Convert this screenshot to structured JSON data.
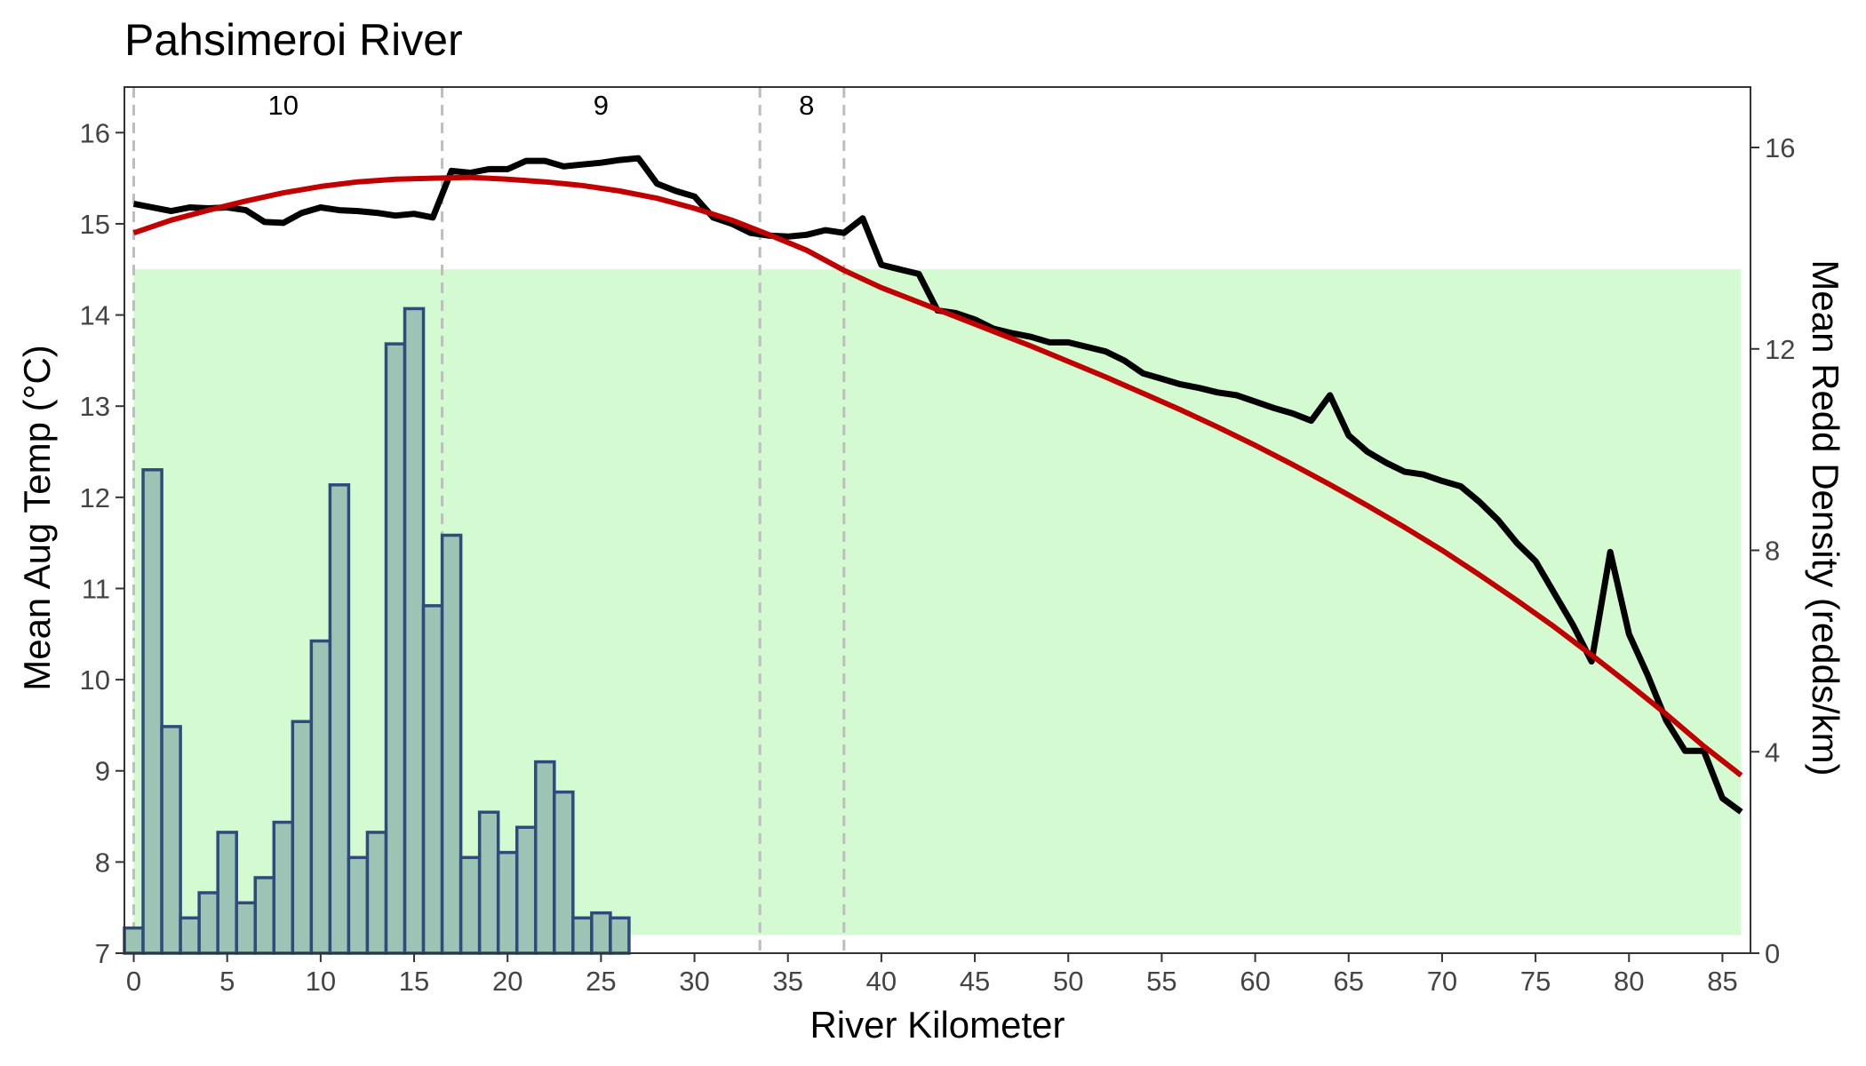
{
  "chart_data": {
    "type": "bar+line",
    "title": "Pahsimeroi River",
    "xlabel": "River Kilometer",
    "ylabel": "Mean Aug Temp (°C)",
    "y2label": "Mean Redd Density (redds/km)",
    "xlim": [
      -0.5,
      86.5
    ],
    "ylim": [
      7,
      16.5
    ],
    "y2lim": [
      0,
      17.2
    ],
    "x_ticks": [
      0,
      5,
      10,
      15,
      20,
      25,
      30,
      35,
      40,
      45,
      50,
      55,
      60,
      65,
      70,
      75,
      80,
      85
    ],
    "y_ticks": [
      7,
      8,
      9,
      10,
      11,
      12,
      13,
      14,
      15,
      16
    ],
    "y2_ticks": [
      0,
      4,
      8,
      12,
      16
    ],
    "colors": {
      "bar_fill": "#9dc3b5",
      "bar_outline": "#2e4b7b",
      "temp_line": "#000000",
      "fit_line": "#c00000",
      "band": "#d3fad0",
      "band_lower": "#c8cce8",
      "dashed": "#bdbdbd"
    },
    "band": {
      "x": [
        0,
        86
      ],
      "y": [
        7.2,
        14.5
      ]
    },
    "band_lower": {
      "x": [
        0,
        26.5
      ],
      "y": [
        7,
        7.2
      ]
    },
    "vlines": [
      0,
      16.5,
      33.5,
      38
    ],
    "segment_labels": [
      {
        "x": 8,
        "text": "10"
      },
      {
        "x": 25,
        "text": "9"
      },
      {
        "x": 36,
        "text": "8"
      }
    ],
    "redd_density": {
      "x": [
        0,
        1,
        2,
        3,
        4,
        5,
        6,
        7,
        8,
        9,
        10,
        11,
        12,
        13,
        14,
        15,
        16,
        17,
        18,
        19,
        20,
        21,
        22,
        23,
        24,
        25,
        26
      ],
      "values": [
        0.5,
        9.6,
        4.5,
        0.7,
        1.2,
        2.4,
        1.0,
        1.5,
        2.6,
        4.6,
        6.2,
        9.3,
        1.9,
        2.4,
        12.1,
        12.8,
        6.9,
        8.3,
        1.9,
        2.8,
        2.0,
        2.5,
        3.8,
        3.2,
        0.7,
        0.8,
        0.7
      ]
    },
    "temperature": {
      "x": [
        0,
        1,
        2,
        3,
        4,
        5,
        6,
        7,
        8,
        9,
        10,
        11,
        12,
        13,
        14,
        15,
        16,
        17,
        18,
        19,
        20,
        21,
        22,
        23,
        24,
        25,
        26,
        27,
        28,
        29,
        30,
        31,
        32,
        33,
        34,
        35,
        36,
        37,
        38,
        39,
        40,
        41,
        42,
        43,
        44,
        45,
        46,
        47,
        48,
        49,
        50,
        51,
        52,
        53,
        54,
        55,
        56,
        57,
        58,
        59,
        60,
        61,
        62,
        63,
        64,
        65,
        66,
        67,
        68,
        69,
        70,
        71,
        72,
        73,
        74,
        75,
        76,
        77,
        78,
        79,
        80,
        81,
        82,
        83,
        84,
        85,
        86
      ],
      "values": [
        15.22,
        15.18,
        15.14,
        15.18,
        15.17,
        15.18,
        15.15,
        15.02,
        15.01,
        15.12,
        15.18,
        15.15,
        15.14,
        15.12,
        15.09,
        15.11,
        15.07,
        15.58,
        15.56,
        15.6,
        15.6,
        15.69,
        15.69,
        15.63,
        15.65,
        15.67,
        15.7,
        15.72,
        15.44,
        15.36,
        15.3,
        15.07,
        15.0,
        14.9,
        14.87,
        14.86,
        14.88,
        14.93,
        14.9,
        15.06,
        14.55,
        14.5,
        14.45,
        14.05,
        14.02,
        13.95,
        13.85,
        13.8,
        13.76,
        13.7,
        13.7,
        13.65,
        13.6,
        13.5,
        13.36,
        13.3,
        13.24,
        13.2,
        13.15,
        13.12,
        13.05,
        12.98,
        12.92,
        12.84,
        13.12,
        12.68,
        12.5,
        12.38,
        12.28,
        12.25,
        12.18,
        12.12,
        11.95,
        11.75,
        11.5,
        11.3,
        10.95,
        10.6,
        10.2,
        11.4,
        10.5,
        10.05,
        9.55,
        9.22,
        9.22,
        8.7,
        8.55
      ]
    },
    "fit": {
      "x": [
        0,
        2,
        4,
        6,
        8,
        10,
        12,
        14,
        16,
        18,
        20,
        22,
        24,
        26,
        28,
        30,
        32,
        34,
        36,
        38,
        40,
        42,
        44,
        46,
        48,
        50,
        52,
        54,
        56,
        58,
        60,
        62,
        64,
        66,
        68,
        70,
        72,
        74,
        76,
        78,
        80,
        82,
        84,
        86
      ],
      "values": [
        14.9,
        15.04,
        15.15,
        15.25,
        15.34,
        15.41,
        15.46,
        15.49,
        15.5,
        15.51,
        15.49,
        15.46,
        15.42,
        15.36,
        15.28,
        15.17,
        15.04,
        14.88,
        14.71,
        14.49,
        14.3,
        14.14,
        13.98,
        13.82,
        13.66,
        13.49,
        13.32,
        13.14,
        12.96,
        12.77,
        12.57,
        12.36,
        12.14,
        11.91,
        11.67,
        11.42,
        11.15,
        10.87,
        10.58,
        10.27,
        9.95,
        9.62,
        9.27,
        8.95
      ]
    }
  }
}
